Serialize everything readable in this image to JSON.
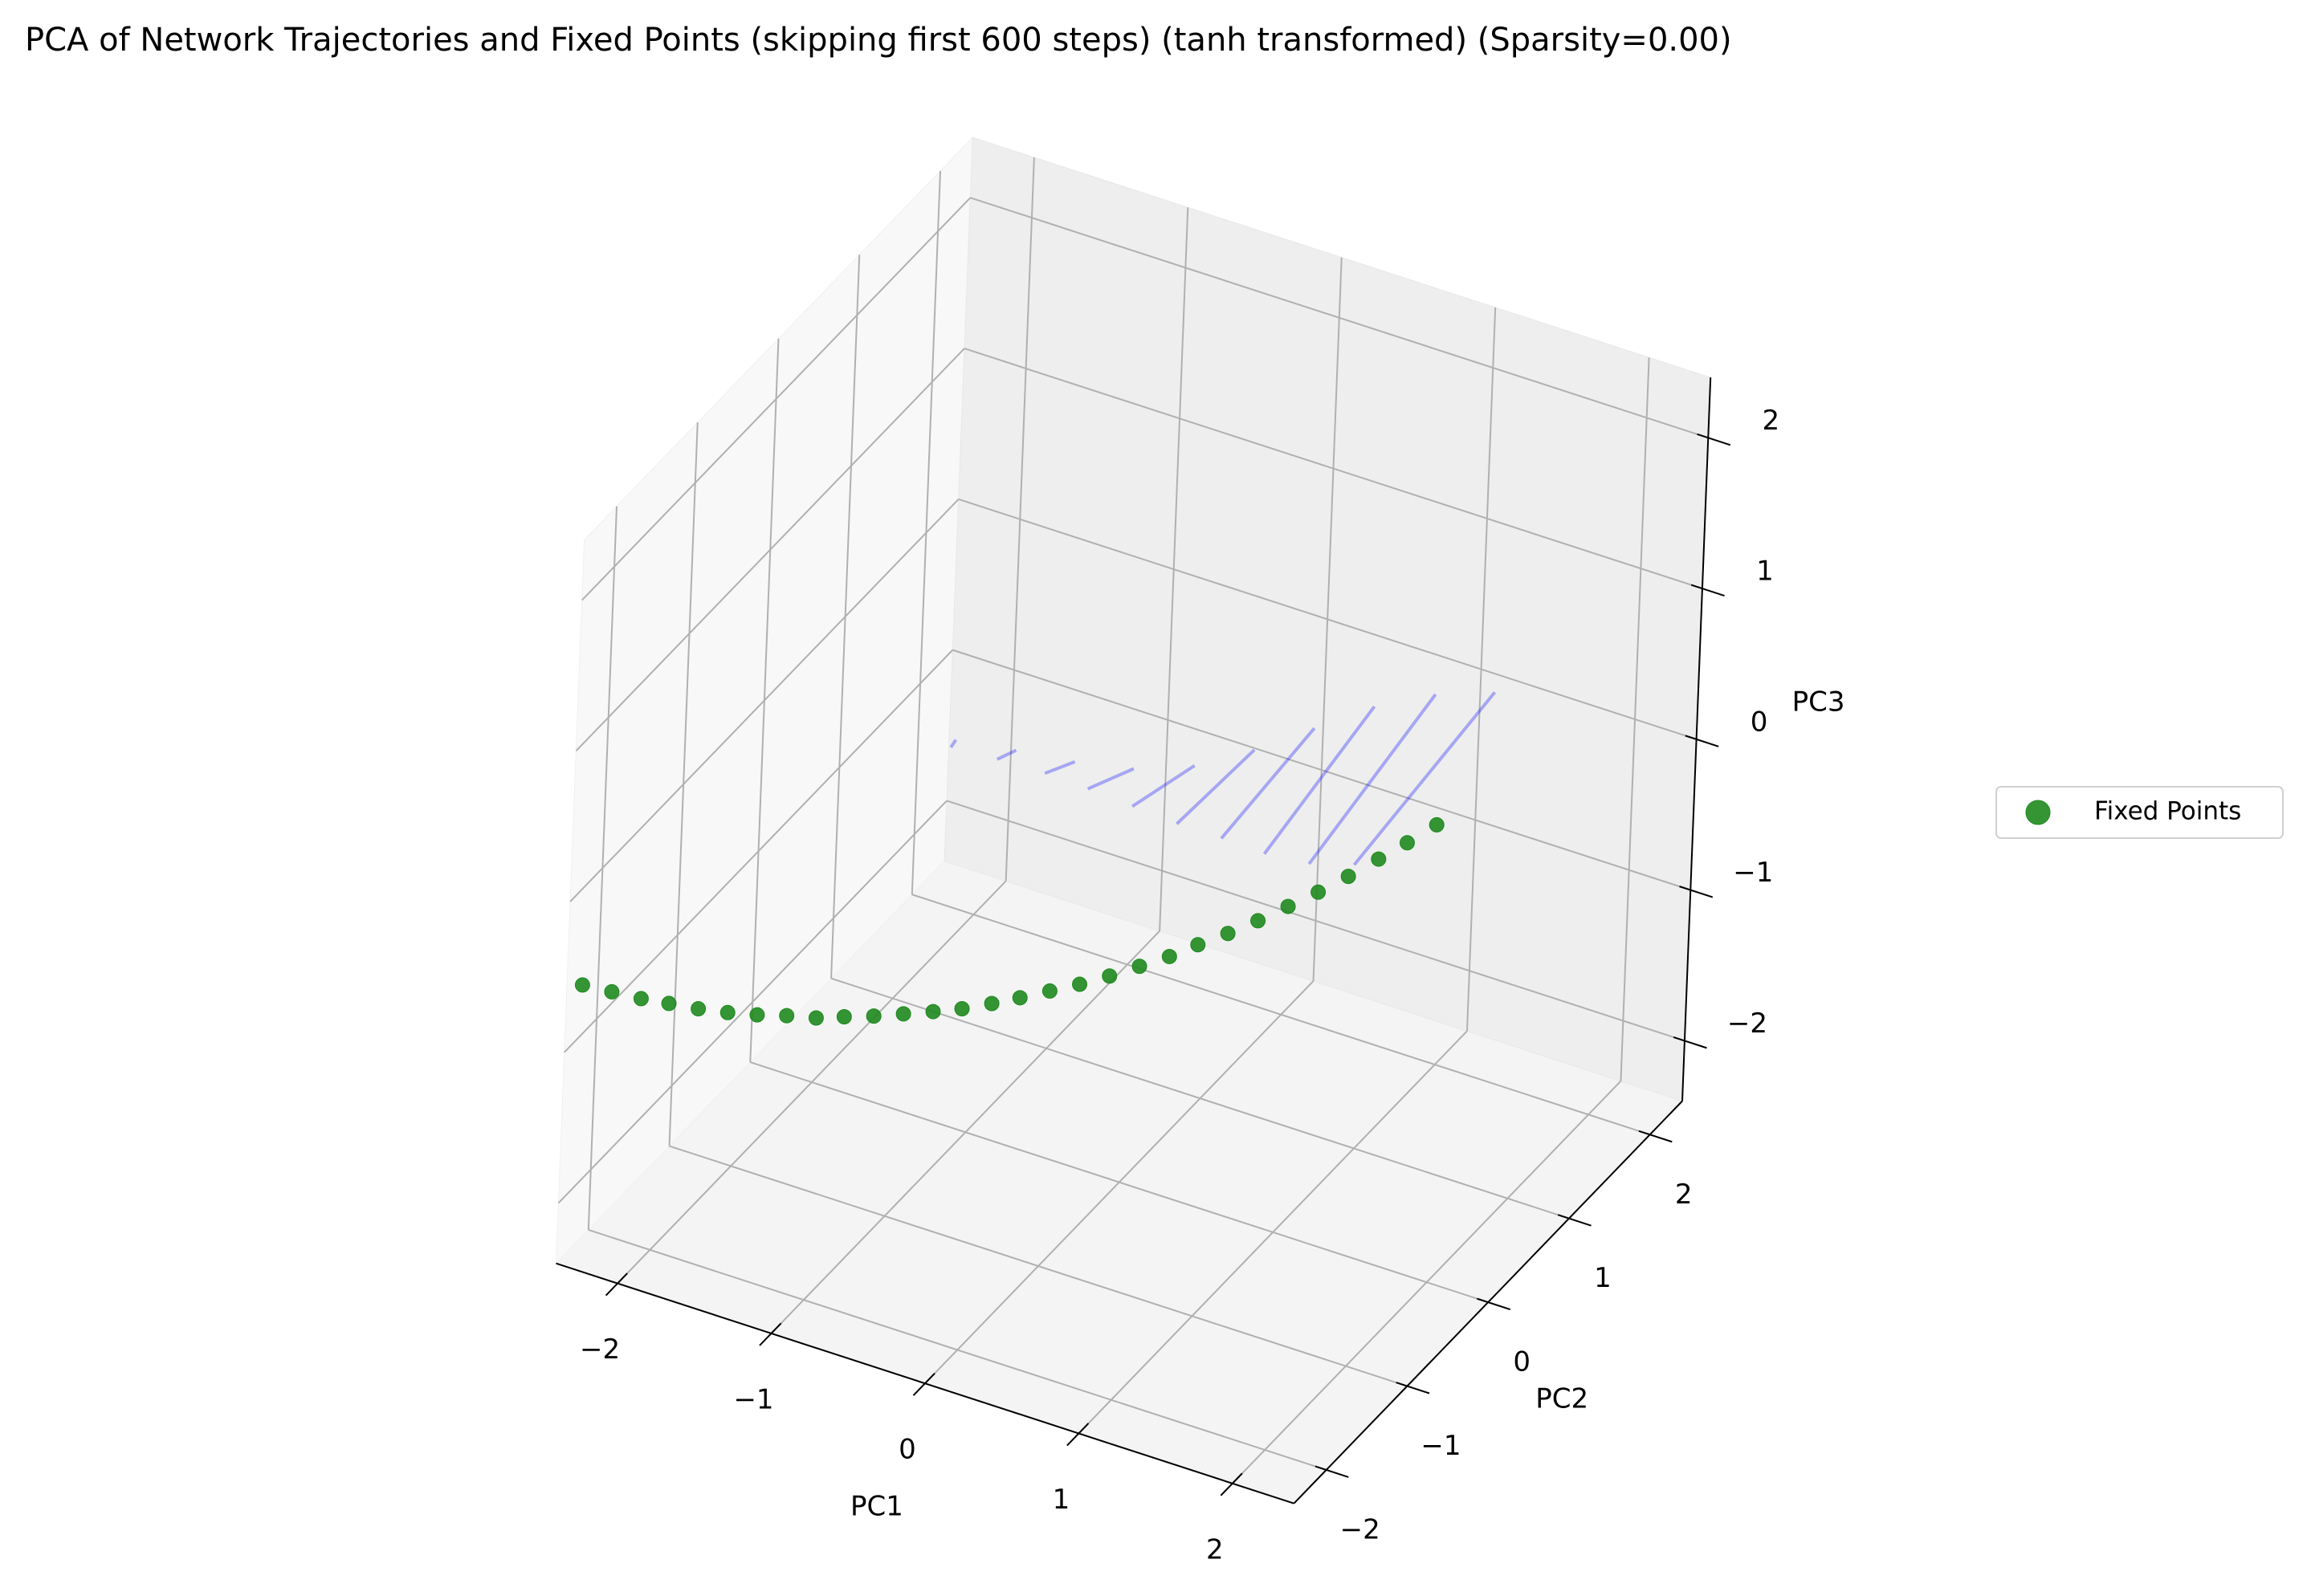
{
  "chart_data": {
    "type": "scatter3d",
    "title": "PCA of Network Trajectories and Fixed Points (skipping first 600 steps) (tanh transformed) (Sparsity=0.00)",
    "xlabel": "PC1",
    "ylabel": "PC2",
    "zlabel": "PC3",
    "xlim": [
      -2.4,
      2.4
    ],
    "ylim": [
      -2.4,
      2.4
    ],
    "zlim": [
      -2.4,
      2.4
    ],
    "xticks": [
      {
        "value": -2,
        "label": "−2"
      },
      {
        "value": -1,
        "label": "−1"
      },
      0,
      1,
      2
    ],
    "yticks": [
      {
        "value": -2,
        "label": "−2"
      },
      {
        "value": -1,
        "label": "−1"
      },
      0,
      1,
      2
    ],
    "zticks": [
      {
        "value": -2,
        "label": "−2"
      },
      {
        "value": -1,
        "label": "−1"
      },
      0,
      1,
      2
    ],
    "grid": true,
    "legend": "center right",
    "series": [
      {
        "name": "Fixed Points",
        "color": "#1f8a1f",
        "alpha": 0.9,
        "x": [
          -2.3,
          -2.15,
          -2.0,
          -1.86,
          -1.71,
          -1.56,
          -1.41,
          -1.26,
          -1.11,
          -0.97,
          -0.82,
          -0.67,
          -0.52,
          -0.37,
          -0.22,
          -0.08,
          0.07,
          0.22,
          0.37,
          0.52,
          0.67,
          0.81,
          0.96,
          1.11,
          1.26,
          1.41,
          1.56,
          1.71,
          1.85,
          2.0
        ],
        "y": [
          -2.4,
          -2.32,
          -2.24,
          -2.16,
          -2.08,
          -2.0,
          -1.92,
          -1.84,
          -1.76,
          -1.68,
          -1.6,
          -1.52,
          -1.44,
          -1.37,
          -1.29,
          -1.21,
          -1.13,
          -1.05,
          -0.97,
          -0.89,
          -0.81,
          -0.73,
          -0.65,
          -0.57,
          -0.49,
          -0.41,
          -0.33,
          -0.25,
          -0.17,
          -0.1
        ],
        "z": [
          -0.52,
          -0.56,
          -0.6,
          -0.63,
          -0.66,
          -0.68,
          -0.69,
          -0.69,
          -0.7,
          -0.69,
          -0.68,
          -0.66,
          -0.64,
          -0.61,
          -0.57,
          -0.53,
          -0.48,
          -0.43,
          -0.37,
          -0.3,
          -0.23,
          -0.15,
          -0.07,
          0.02,
          0.12,
          0.22,
          0.33,
          0.45,
          0.56,
          0.69
        ]
      }
    ],
    "trajectories": {
      "color": "#0000ff",
      "alpha": 0.3,
      "lines": [
        {
          "x": [
            -1.16,
            -1.19
          ],
          "y": [
            0,
            0
          ],
          "z": [
            0.15,
            0.09
          ]
        },
        {
          "x": [
            -0.77,
            -0.89
          ],
          "y": [
            0,
            0
          ],
          "z": [
            0.21,
            0.11
          ]
        },
        {
          "x": [
            -0.39,
            -0.58
          ],
          "y": [
            0,
            0
          ],
          "z": [
            0.26,
            0.12
          ]
        },
        {
          "x": [
            -0.01,
            -0.3
          ],
          "y": [
            0,
            0
          ],
          "z": [
            0.34,
            0.11
          ]
        },
        {
          "x": [
            0.38,
            -0.01
          ],
          "y": [
            0,
            0
          ],
          "z": [
            0.49,
            0.09
          ]
        },
        {
          "x": [
            0.76,
            0.28
          ],
          "y": [
            0,
            0
          ],
          "z": [
            0.72,
            0.07
          ]
        },
        {
          "x": [
            1.14,
            0.57
          ],
          "y": [
            0,
            0
          ],
          "z": [
            0.99,
            0.07
          ]
        },
        {
          "x": [
            1.52,
            0.85
          ],
          "y": [
            0,
            0
          ],
          "z": [
            1.26,
            0.06
          ]
        },
        {
          "x": [
            1.91,
            1.14
          ],
          "y": [
            0,
            0
          ],
          "z": [
            1.47,
            0.09
          ]
        },
        {
          "x": [
            2.29,
            1.43
          ],
          "y": [
            0,
            0
          ],
          "z": [
            1.61,
            0.18
          ]
        }
      ]
    }
  }
}
